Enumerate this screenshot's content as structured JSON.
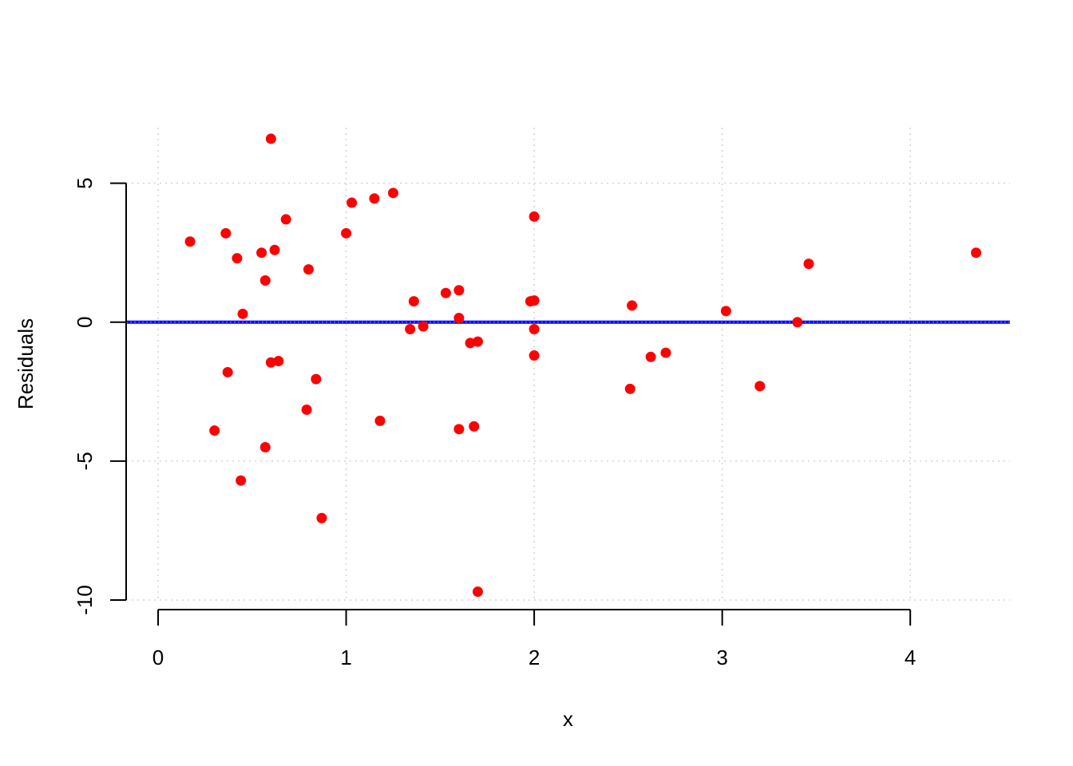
{
  "chart_data": {
    "type": "scatter",
    "title": "",
    "xlabel": "x",
    "ylabel": "Residuals",
    "xlim": [
      -0.17,
      4.53
    ],
    "ylim": [
      -10.0,
      7.0
    ],
    "x_ticks": [
      0,
      1,
      2,
      3,
      4
    ],
    "x_tick_labels": [
      "0",
      "1",
      "2",
      "3",
      "4"
    ],
    "y_ticks": [
      -10,
      -5,
      0,
      5
    ],
    "y_tick_labels": [
      "-10",
      "-5",
      "0",
      "5"
    ],
    "grid": true,
    "reference_line": {
      "y": 0,
      "color": "#0000ff"
    },
    "colors": {
      "points": "#ff0000",
      "grid": "#d3d3d3",
      "axis": "#000000"
    },
    "points": [
      {
        "x": 0.17,
        "y": 2.9
      },
      {
        "x": 0.3,
        "y": -3.9
      },
      {
        "x": 0.36,
        "y": 3.2
      },
      {
        "x": 0.37,
        "y": -1.8
      },
      {
        "x": 0.42,
        "y": 2.3
      },
      {
        "x": 0.44,
        "y": -5.7
      },
      {
        "x": 0.45,
        "y": 0.3
      },
      {
        "x": 0.55,
        "y": 2.5
      },
      {
        "x": 0.57,
        "y": 1.5
      },
      {
        "x": 0.57,
        "y": -4.5
      },
      {
        "x": 0.6,
        "y": 6.6
      },
      {
        "x": 0.6,
        "y": -1.45
      },
      {
        "x": 0.62,
        "y": 2.6
      },
      {
        "x": 0.64,
        "y": -1.4
      },
      {
        "x": 0.68,
        "y": 3.7
      },
      {
        "x": 0.79,
        "y": -3.15
      },
      {
        "x": 0.8,
        "y": 1.9
      },
      {
        "x": 0.84,
        "y": -2.05
      },
      {
        "x": 0.87,
        "y": -7.05
      },
      {
        "x": 1.0,
        "y": 3.2
      },
      {
        "x": 1.03,
        "y": 4.3
      },
      {
        "x": 1.15,
        "y": 4.45
      },
      {
        "x": 1.18,
        "y": -3.55
      },
      {
        "x": 1.25,
        "y": 4.65
      },
      {
        "x": 1.34,
        "y": -0.25
      },
      {
        "x": 1.36,
        "y": 0.75
      },
      {
        "x": 1.41,
        "y": -0.15
      },
      {
        "x": 1.53,
        "y": 1.05
      },
      {
        "x": 1.6,
        "y": 1.15
      },
      {
        "x": 1.6,
        "y": 0.15
      },
      {
        "x": 1.6,
        "y": -3.85
      },
      {
        "x": 1.66,
        "y": -0.75
      },
      {
        "x": 1.68,
        "y": -3.75
      },
      {
        "x": 1.7,
        "y": -0.7
      },
      {
        "x": 1.7,
        "y": -9.7
      },
      {
        "x": 1.98,
        "y": 0.75
      },
      {
        "x": 2.0,
        "y": 0.78
      },
      {
        "x": 2.0,
        "y": 3.8
      },
      {
        "x": 2.0,
        "y": -0.25
      },
      {
        "x": 2.0,
        "y": -1.2
      },
      {
        "x": 2.51,
        "y": -2.4
      },
      {
        "x": 2.52,
        "y": 0.6
      },
      {
        "x": 2.62,
        "y": -1.25
      },
      {
        "x": 2.7,
        "y": -1.1
      },
      {
        "x": 3.02,
        "y": 0.4
      },
      {
        "x": 3.2,
        "y": -2.3
      },
      {
        "x": 3.4,
        "y": 0.0
      },
      {
        "x": 3.46,
        "y": 2.1
      },
      {
        "x": 4.35,
        "y": 2.5
      }
    ]
  }
}
